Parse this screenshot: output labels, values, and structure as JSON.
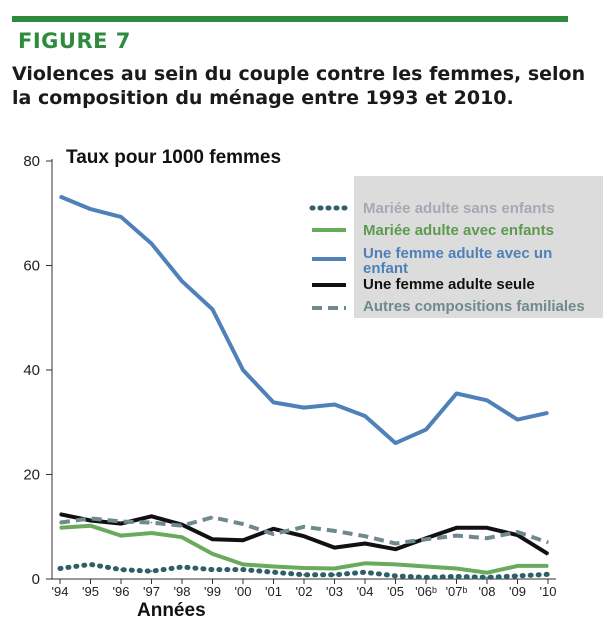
{
  "header": {
    "figure_label": "FIGURE 7",
    "title": "Violences au sein du couple contre les femmes, selon la composition du ménage entre 1993 et 2010."
  },
  "colors": {
    "accent": "#2e8b3e",
    "legend_background": "#dcdcdc"
  },
  "chart_data": {
    "type": "line",
    "title": "Violences au sein du couple contre les femmes, selon la composition du ménage entre 1993 et 2010.",
    "ylabel": "Taux pour 1000 femmes",
    "xlabel": "Années",
    "ylim": [
      0,
      80
    ],
    "yticks": [
      0,
      20,
      40,
      60,
      80
    ],
    "grid": false,
    "legend_position": "top-right",
    "categories": [
      "'94",
      "'95",
      "'96",
      "'97",
      "'98",
      "'99",
      "'00",
      "'01",
      "'02",
      "'03",
      "'04",
      "'05",
      "'06ᵇ",
      "'07ᵇ",
      "'08",
      "'09",
      "'10"
    ],
    "series": [
      {
        "name": "Mariée adulte sans enfants",
        "color": "#2e5f66",
        "style": "dotted",
        "values": [
          2.0,
          2.8,
          1.8,
          1.5,
          2.3,
          1.8,
          1.8,
          1.3,
          0.8,
          0.8,
          1.3,
          0.6,
          0.3,
          0.5,
          0.3,
          0.6,
          0.9
        ]
      },
      {
        "name": "Mariée adulte avec enfants",
        "color": "#6aaa5c",
        "style": "solid",
        "values": [
          9.8,
          10.2,
          8.3,
          8.8,
          8.0,
          4.8,
          2.8,
          2.4,
          2.1,
          2.0,
          3.0,
          2.8,
          2.4,
          2.0,
          1.2,
          2.5,
          2.5
        ]
      },
      {
        "name": "Une femme adulte avec un enfant",
        "color": "#4f81b8",
        "style": "solid",
        "values": [
          73.2,
          70.8,
          69.3,
          64.2,
          57.0,
          51.6,
          40.0,
          33.8,
          32.8,
          33.4,
          31.2,
          26.0,
          28.6,
          35.5,
          34.2,
          30.5,
          31.8
        ]
      },
      {
        "name": "Une femme adulte seule",
        "color": "#111111",
        "style": "solid",
        "values": [
          12.4,
          11.2,
          10.6,
          12.0,
          10.4,
          7.6,
          7.4,
          9.6,
          8.2,
          6.0,
          6.8,
          5.7,
          7.8,
          9.8,
          9.8,
          8.4,
          4.8
        ]
      },
      {
        "name": "Autres compositions familiales",
        "color": "#6f8a8c",
        "style": "dashed",
        "values": [
          10.8,
          11.6,
          11.0,
          10.8,
          10.2,
          11.8,
          10.5,
          8.6,
          10.0,
          9.2,
          8.2,
          6.8,
          7.6,
          8.3,
          7.8,
          9.0,
          7.0
        ]
      }
    ]
  }
}
